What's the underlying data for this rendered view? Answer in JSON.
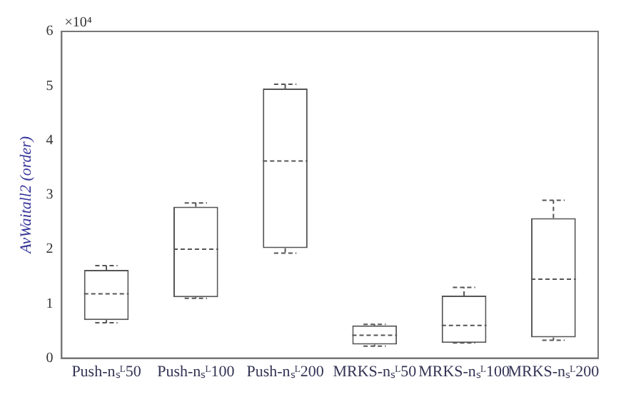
{
  "chart_data": {
    "type": "box",
    "ylabel": "AvWaitall2 (order)",
    "annotations": [
      "×10⁴"
    ],
    "categories": [
      "Push-nₛᴸ50",
      "Push-nₛᴸ100",
      "Push-nₛᴸ200",
      "MRKS-nₛᴸ50",
      "MRKS-nₛᴸ100",
      "MRKS-nₛᴸ200"
    ],
    "boxes": [
      {
        "low": 0.65,
        "q1": 0.7,
        "median": 1.18,
        "q3": 1.62,
        "high": 1.7
      },
      {
        "low": 1.1,
        "q1": 1.12,
        "median": 2.0,
        "q3": 2.78,
        "high": 2.85
      },
      {
        "low": 1.93,
        "q1": 2.02,
        "median": 3.62,
        "q3": 4.95,
        "high": 5.03
      },
      {
        "low": 0.22,
        "q1": 0.25,
        "median": 0.42,
        "q3": 0.6,
        "high": 0.62
      },
      {
        "low": 0.28,
        "q1": 0.28,
        "median": 0.6,
        "q3": 1.15,
        "high": 1.3
      },
      {
        "low": 0.33,
        "q1": 0.38,
        "median": 1.45,
        "q3": 2.57,
        "high": 2.9
      }
    ],
    "color": "#555555",
    "ylim": [
      0,
      6
    ],
    "yticks": [
      0,
      1,
      2,
      3,
      4,
      5,
      6
    ],
    "grid": false,
    "legend": false,
    "line_style": "dashed"
  }
}
